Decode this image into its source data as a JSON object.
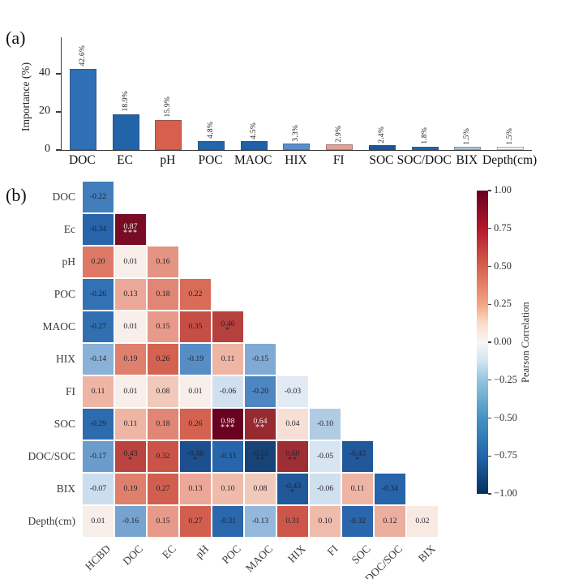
{
  "panels": {
    "a_label": "(a)",
    "b_label": "(b)"
  },
  "colorbar": {
    "title": "Pearson Correlation",
    "ticks": [
      "1.00",
      "0.75",
      "0.50",
      "0.25",
      "0.00",
      "-0.25",
      "-0.50",
      "-0.75",
      "-1.00"
    ],
    "min": -1.0,
    "max": 1.0
  },
  "chart_data": [
    {
      "type": "bar",
      "title": "",
      "xlabel": "",
      "ylabel": "Importance (%)",
      "categories": [
        "DOC",
        "EC",
        "pH",
        "POC",
        "MAOC",
        "HIX",
        "FI",
        "SOC",
        "SOC/DOC",
        "BIX",
        "Depth(cm)"
      ],
      "values": [
        42.6,
        18.9,
        15.9,
        4.8,
        4.5,
        3.3,
        2.9,
        2.4,
        1.8,
        1.5,
        1.5
      ],
      "value_labels": [
        "42.6%",
        "18.9%",
        "15.9%",
        "4.8%",
        "4.5%",
        "3.3%",
        "2.9%",
        "2.4%",
        "1.8%",
        "1.5%",
        "1.5%"
      ],
      "bar_colors": [
        "#2e6fb5",
        "#2264aa",
        "#d6604d",
        "#2166ac",
        "#1f60a8",
        "#5b8ec8",
        "#e5a093",
        "#1b559b",
        "#2767ad",
        "#a9c7e1",
        "#f0f1ef"
      ],
      "yticks": [
        0,
        20,
        40
      ],
      "ylim": [
        0,
        57
      ],
      "grid": false,
      "legend": "none"
    },
    {
      "type": "heatmap",
      "subtype": "lower-triangular correlation matrix",
      "legend_title": "Pearson Correlation",
      "colormap": "RdBu reversed (red = positive, blue = negative)",
      "vmin": -1.0,
      "vmax": 1.0,
      "row_labels": [
        "DOC",
        "Ec",
        "pH",
        "POC",
        "MAOC",
        "HIX",
        "FI",
        "SOC",
        "DOC/SOC",
        "BIX",
        "Depth(cm)"
      ],
      "col_labels": [
        "HCBD",
        "DOC",
        "EC",
        "pH",
        "POC",
        "MAOC",
        "HIX",
        "FI",
        "SOC",
        "DOC/SOC",
        "BIX"
      ],
      "cells": [
        [
          {
            "t": "-0.22",
            "v": -0.22,
            "s": ""
          }
        ],
        [
          {
            "t": "-0.34",
            "v": -0.34,
            "s": ""
          },
          {
            "t": "0.87",
            "v": 0.87,
            "s": "***"
          }
        ],
        [
          {
            "t": "0.20",
            "v": 0.2,
            "s": ""
          },
          {
            "t": "0.01",
            "v": 0.01,
            "s": ""
          },
          {
            "t": "0.16",
            "v": 0.16,
            "s": ""
          }
        ],
        [
          {
            "t": "-0.26",
            "v": -0.26,
            "s": ""
          },
          {
            "t": "0.13",
            "v": 0.13,
            "s": ""
          },
          {
            "t": "0.18",
            "v": 0.18,
            "s": ""
          },
          {
            "t": "0.22",
            "v": 0.22,
            "s": ""
          }
        ],
        [
          {
            "t": "-0.27",
            "v": -0.27,
            "s": ""
          },
          {
            "t": "0.01",
            "v": 0.01,
            "s": ""
          },
          {
            "t": "0.15",
            "v": 0.15,
            "s": ""
          },
          {
            "t": "0.35",
            "v": 0.35,
            "s": ""
          },
          {
            "t": "0.46",
            "v": 0.46,
            "s": "*"
          }
        ],
        [
          {
            "t": "-0.14",
            "v": -0.14,
            "s": ""
          },
          {
            "t": "0.19",
            "v": 0.19,
            "s": ""
          },
          {
            "t": "0.26",
            "v": 0.26,
            "s": ""
          },
          {
            "t": "-0.19",
            "v": -0.19,
            "s": ""
          },
          {
            "t": "0.11",
            "v": 0.11,
            "s": ""
          },
          {
            "t": "-0.15",
            "v": -0.15,
            "s": ""
          }
        ],
        [
          {
            "t": "0.11",
            "v": 0.11,
            "s": ""
          },
          {
            "t": "0.01",
            "v": 0.01,
            "s": ""
          },
          {
            "t": "0.08",
            "v": 0.08,
            "s": ""
          },
          {
            "t": "0.01",
            "v": 0.01,
            "s": ""
          },
          {
            "t": "-0.06",
            "v": -0.06,
            "s": ""
          },
          {
            "t": "-0.20",
            "v": -0.2,
            "s": ""
          },
          {
            "t": "-0.03",
            "v": -0.03,
            "s": ""
          }
        ],
        [
          {
            "t": "-0.29",
            "v": -0.29,
            "s": ""
          },
          {
            "t": "0.11",
            "v": 0.11,
            "s": ""
          },
          {
            "t": "0.18",
            "v": 0.18,
            "s": ""
          },
          {
            "t": "0.26",
            "v": 0.26,
            "s": ""
          },
          {
            "t": "0.98",
            "v": 0.98,
            "s": "***"
          },
          {
            "t": "0.64",
            "v": 0.64,
            "s": "**"
          },
          {
            "t": "0.04",
            "v": 0.04,
            "s": ""
          },
          {
            "t": "-0.10",
            "v": -0.1,
            "s": ""
          }
        ],
        [
          {
            "t": "-0.17",
            "v": -0.17,
            "s": ""
          },
          {
            "t": "0.43",
            "v": 0.43,
            "s": "*"
          },
          {
            "t": "0.32",
            "v": 0.32,
            "s": ""
          },
          {
            "t": "-0.48",
            "v": -0.48,
            "s": "*"
          },
          {
            "t": "-0.33",
            "v": -0.33,
            "s": ""
          },
          {
            "t": "-0.55",
            "v": -0.55,
            "s": "**"
          },
          {
            "t": "0.60",
            "v": 0.6,
            "s": "**"
          },
          {
            "t": "-0.05",
            "v": -0.05,
            "s": ""
          },
          {
            "t": "-0.43",
            "v": -0.43,
            "s": "*"
          }
        ],
        [
          {
            "t": "-0.07",
            "v": -0.07,
            "s": ""
          },
          {
            "t": "0.19",
            "v": 0.19,
            "s": ""
          },
          {
            "t": "0.27",
            "v": 0.27,
            "s": ""
          },
          {
            "t": "0.13",
            "v": 0.13,
            "s": ""
          },
          {
            "t": "0.10",
            "v": 0.1,
            "s": ""
          },
          {
            "t": "0.08",
            "v": 0.08,
            "s": ""
          },
          {
            "t": "-0.43",
            "v": -0.43,
            "s": "*"
          },
          {
            "t": "-0.06",
            "v": -0.06,
            "s": ""
          },
          {
            "t": "0.11",
            "v": 0.11,
            "s": ""
          },
          {
            "t": "-0.34",
            "v": -0.34,
            "s": ""
          }
        ],
        [
          {
            "t": "0.01",
            "v": 0.01,
            "s": ""
          },
          {
            "t": "-0.16",
            "v": -0.16,
            "s": ""
          },
          {
            "t": "0.15",
            "v": 0.15,
            "s": ""
          },
          {
            "t": "0.27",
            "v": 0.27,
            "s": ""
          },
          {
            "t": "-0.31",
            "v": -0.31,
            "s": ""
          },
          {
            "t": "-0.13",
            "v": -0.13,
            "s": ""
          },
          {
            "t": "0.31",
            "v": 0.31,
            "s": ""
          },
          {
            "t": "0.10",
            "v": 0.1,
            "s": ""
          },
          {
            "t": "-0.32",
            "v": -0.32,
            "s": ""
          },
          {
            "t": "0.12",
            "v": 0.12,
            "s": ""
          },
          {
            "t": "0.02",
            "v": 0.02,
            "s": ""
          }
        ]
      ]
    }
  ]
}
